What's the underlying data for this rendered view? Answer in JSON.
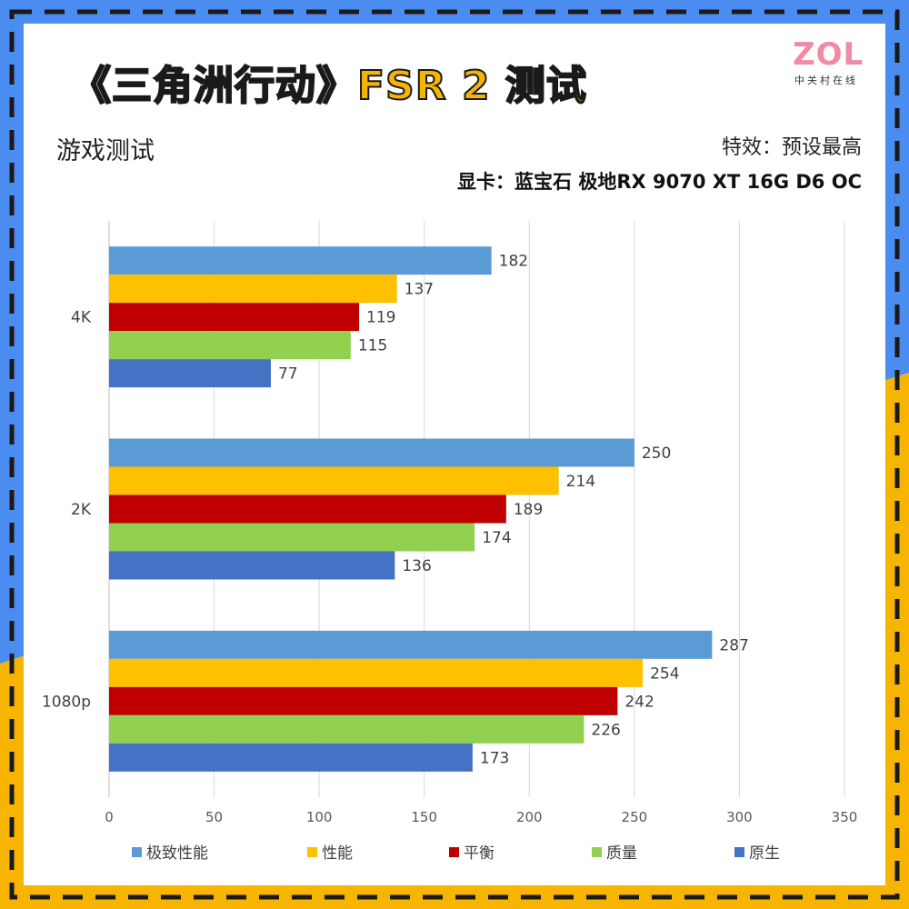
{
  "header": {
    "title": "《三角洲行动》FSR 2 测试",
    "logo": "ZOL",
    "logo_sub": "中关村在线",
    "subtitle": "游戏测试",
    "effect": "特效：预设最高",
    "gpu": "显卡：蓝宝石 极地RX 9070 XT 16G D6 OC"
  },
  "colors": {
    "border_blue": "#4a8cf0",
    "border_yellow": "#f7b400",
    "dash": "#1a1a1a"
  },
  "chart_data": {
    "type": "bar",
    "orientation": "horizontal",
    "categories": [
      "4K",
      "2K",
      "1080p"
    ],
    "series": [
      {
        "name": "极致性能",
        "color": "#5b9bd5",
        "values": [
          182,
          250,
          287
        ]
      },
      {
        "name": "性能",
        "color": "#ffc000",
        "values": [
          137,
          214,
          254
        ]
      },
      {
        "name": "平衡",
        "color": "#c00000",
        "values": [
          119,
          189,
          242
        ]
      },
      {
        "name": "质量",
        "color": "#92d050",
        "values": [
          115,
          174,
          226
        ]
      },
      {
        "name": "原生",
        "color": "#4472c4",
        "values": [
          77,
          136,
          173
        ]
      }
    ],
    "xlim": [
      0,
      350
    ],
    "xticks": [
      0,
      50,
      100,
      150,
      200,
      250,
      300,
      350
    ],
    "grid": true,
    "legend": "bottom"
  }
}
